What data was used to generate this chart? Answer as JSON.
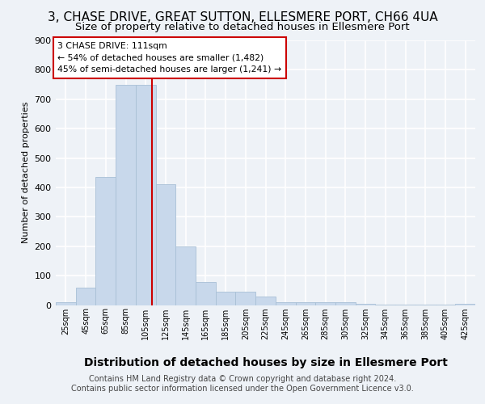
{
  "title1": "3, CHASE DRIVE, GREAT SUTTON, ELLESMERE PORT, CH66 4UA",
  "title2": "Size of property relative to detached houses in Ellesmere Port",
  "xlabel": "Distribution of detached houses by size in Ellesmere Port",
  "ylabel": "Number of detached properties",
  "footer1": "Contains HM Land Registry data © Crown copyright and database right 2024.",
  "footer2": "Contains public sector information licensed under the Open Government Licence v3.0.",
  "annotation_line1": "3 CHASE DRIVE: 111sqm",
  "annotation_line2": "← 54% of detached houses are smaller (1,482)",
  "annotation_line3": "45% of semi-detached houses are larger (1,241) →",
  "bar_color": "#c8d8eb",
  "bar_edge_color": "#a8c0d6",
  "vline_color": "#cc0000",
  "vline_x": 111,
  "categories": [
    25,
    45,
    65,
    85,
    105,
    125,
    145,
    165,
    185,
    205,
    225,
    245,
    265,
    285,
    305,
    325,
    345,
    365,
    385,
    405,
    425
  ],
  "values": [
    10,
    58,
    435,
    750,
    750,
    410,
    200,
    78,
    45,
    45,
    28,
    10,
    10,
    10,
    10,
    5,
    2,
    1,
    1,
    1,
    5
  ],
  "bin_width": 20,
  "ylim": [
    0,
    900
  ],
  "yticks": [
    0,
    100,
    200,
    300,
    400,
    500,
    600,
    700,
    800,
    900
  ],
  "background_color": "#eef2f7",
  "plot_background": "#eef2f7",
  "grid_color": "#ffffff",
  "title1_fontsize": 11,
  "title2_fontsize": 9.5,
  "xlabel_fontsize": 10,
  "ylabel_fontsize": 8,
  "footer_fontsize": 7
}
